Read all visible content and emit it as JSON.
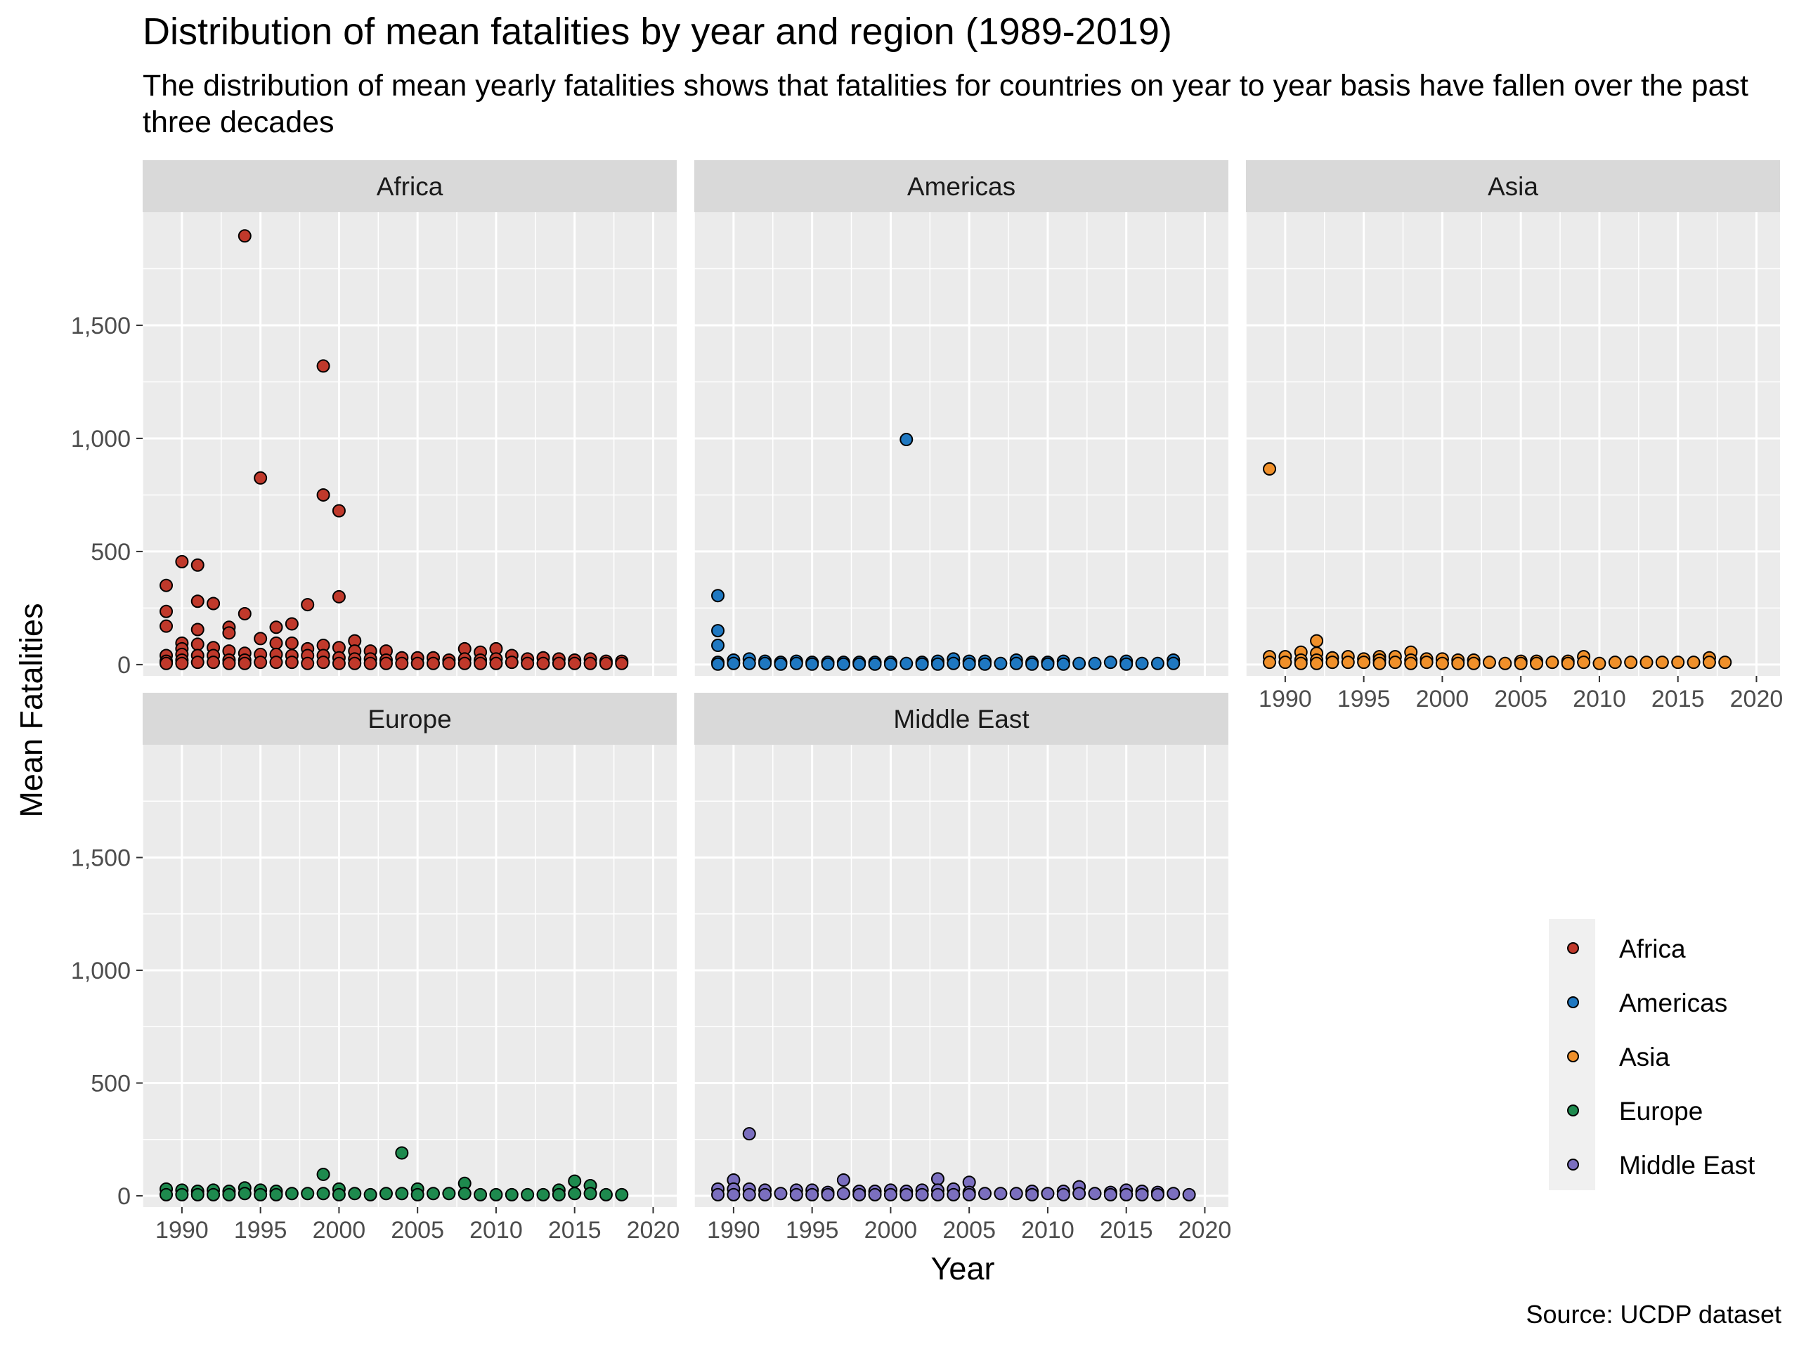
{
  "chart_data": {
    "type": "scatter",
    "title": "Distribution of mean fatalities by year and region (1989-2019)",
    "subtitle": "The distribution of mean yearly fatalities shows that fatalities for countries on  year to year basis have fallen over the past three decades",
    "caption": "Source: UCDP dataset",
    "xlabel": "Year",
    "ylabel": "Mean Fatalities",
    "xlim": [
      1987.5,
      2021.5
    ],
    "ylim": [
      -50,
      2000
    ],
    "xticks": [
      1990,
      1995,
      2000,
      2005,
      2010,
      2015,
      2020
    ],
    "yticks": [
      0,
      500,
      1000,
      1500
    ],
    "ytick_labels": [
      "0",
      "500",
      "1,000",
      "1,500"
    ],
    "grid": true,
    "legend_position": "right",
    "legend": [
      "Africa",
      "Americas",
      "Asia",
      "Europe",
      "Middle East"
    ],
    "colors": {
      "Africa": "#c0392b",
      "Americas": "#1f78c1",
      "Asia": "#f0902a",
      "Europe": "#1e8a4e",
      "Middle East": "#7b6fbf"
    },
    "series": [
      {
        "name": "Africa",
        "points": [
          [
            1989,
            350
          ],
          [
            1989,
            235
          ],
          [
            1989,
            170
          ],
          [
            1989,
            40
          ],
          [
            1989,
            15
          ],
          [
            1989,
            5
          ],
          [
            1990,
            455
          ],
          [
            1990,
            95
          ],
          [
            1990,
            70
          ],
          [
            1990,
            45
          ],
          [
            1990,
            20
          ],
          [
            1990,
            5
          ],
          [
            1991,
            440
          ],
          [
            1991,
            280
          ],
          [
            1991,
            155
          ],
          [
            1991,
            90
          ],
          [
            1991,
            40
          ],
          [
            1991,
            10
          ],
          [
            1992,
            270
          ],
          [
            1992,
            75
          ],
          [
            1992,
            40
          ],
          [
            1992,
            10
          ],
          [
            1993,
            165
          ],
          [
            1993,
            140
          ],
          [
            1993,
            60
          ],
          [
            1993,
            20
          ],
          [
            1993,
            5
          ],
          [
            1994,
            1895
          ],
          [
            1994,
            225
          ],
          [
            1994,
            50
          ],
          [
            1994,
            20
          ],
          [
            1994,
            5
          ],
          [
            1995,
            825
          ],
          [
            1995,
            115
          ],
          [
            1995,
            45
          ],
          [
            1995,
            10
          ],
          [
            1996,
            165
          ],
          [
            1996,
            95
          ],
          [
            1996,
            45
          ],
          [
            1996,
            10
          ],
          [
            1997,
            180
          ],
          [
            1997,
            95
          ],
          [
            1997,
            40
          ],
          [
            1997,
            10
          ],
          [
            1998,
            265
          ],
          [
            1998,
            70
          ],
          [
            1998,
            40
          ],
          [
            1998,
            5
          ],
          [
            1999,
            1320
          ],
          [
            1999,
            750
          ],
          [
            1999,
            85
          ],
          [
            1999,
            40
          ],
          [
            1999,
            10
          ],
          [
            2000,
            680
          ],
          [
            2000,
            300
          ],
          [
            2000,
            75
          ],
          [
            2000,
            30
          ],
          [
            2000,
            5
          ],
          [
            2001,
            105
          ],
          [
            2001,
            60
          ],
          [
            2001,
            25
          ],
          [
            2001,
            5
          ],
          [
            2002,
            60
          ],
          [
            2002,
            25
          ],
          [
            2002,
            5
          ],
          [
            2003,
            60
          ],
          [
            2003,
            20
          ],
          [
            2003,
            5
          ],
          [
            2004,
            30
          ],
          [
            2004,
            5
          ],
          [
            2005,
            30
          ],
          [
            2005,
            5
          ],
          [
            2006,
            30
          ],
          [
            2006,
            5
          ],
          [
            2007,
            20
          ],
          [
            2007,
            5
          ],
          [
            2008,
            70
          ],
          [
            2008,
            25
          ],
          [
            2008,
            5
          ],
          [
            2009,
            55
          ],
          [
            2009,
            20
          ],
          [
            2009,
            5
          ],
          [
            2010,
            70
          ],
          [
            2010,
            25
          ],
          [
            2010,
            5
          ],
          [
            2011,
            40
          ],
          [
            2011,
            10
          ],
          [
            2012,
            25
          ],
          [
            2012,
            5
          ],
          [
            2013,
            30
          ],
          [
            2013,
            5
          ],
          [
            2014,
            25
          ],
          [
            2014,
            5
          ],
          [
            2015,
            20
          ],
          [
            2015,
            5
          ],
          [
            2016,
            25
          ],
          [
            2016,
            5
          ],
          [
            2017,
            15
          ],
          [
            2017,
            5
          ],
          [
            2018,
            15
          ],
          [
            2018,
            5
          ]
        ]
      },
      {
        "name": "Americas",
        "points": [
          [
            1989,
            305
          ],
          [
            1989,
            150
          ],
          [
            1989,
            85
          ],
          [
            1989,
            10
          ],
          [
            1989,
            2
          ],
          [
            1990,
            20
          ],
          [
            1990,
            5
          ],
          [
            1991,
            25
          ],
          [
            1991,
            5
          ],
          [
            1992,
            15
          ],
          [
            1992,
            5
          ],
          [
            1993,
            10
          ],
          [
            1993,
            2
          ],
          [
            1994,
            15
          ],
          [
            1994,
            5
          ],
          [
            1995,
            10
          ],
          [
            1995,
            2
          ],
          [
            1996,
            10
          ],
          [
            1996,
            2
          ],
          [
            1997,
            10
          ],
          [
            1997,
            2
          ],
          [
            1998,
            10
          ],
          [
            1998,
            2
          ],
          [
            1999,
            10
          ],
          [
            1999,
            2
          ],
          [
            2000,
            10
          ],
          [
            2000,
            2
          ],
          [
            2001,
            995
          ],
          [
            2001,
            5
          ],
          [
            2002,
            10
          ],
          [
            2002,
            2
          ],
          [
            2003,
            15
          ],
          [
            2003,
            2
          ],
          [
            2004,
            25
          ],
          [
            2004,
            5
          ],
          [
            2005,
            15
          ],
          [
            2005,
            2
          ],
          [
            2006,
            15
          ],
          [
            2006,
            2
          ],
          [
            2007,
            5
          ],
          [
            2008,
            20
          ],
          [
            2008,
            5
          ],
          [
            2009,
            10
          ],
          [
            2009,
            2
          ],
          [
            2010,
            10
          ],
          [
            2010,
            2
          ],
          [
            2011,
            15
          ],
          [
            2011,
            2
          ],
          [
            2012,
            5
          ],
          [
            2013,
            5
          ],
          [
            2014,
            10
          ],
          [
            2015,
            15
          ],
          [
            2015,
            2
          ],
          [
            2016,
            5
          ],
          [
            2017,
            5
          ],
          [
            2018,
            20
          ],
          [
            2018,
            5
          ]
        ]
      },
      {
        "name": "Asia",
        "points": [
          [
            1989,
            865
          ],
          [
            1989,
            35
          ],
          [
            1989,
            10
          ],
          [
            1990,
            35
          ],
          [
            1990,
            10
          ],
          [
            1991,
            55
          ],
          [
            1991,
            20
          ],
          [
            1991,
            5
          ],
          [
            1992,
            105
          ],
          [
            1992,
            50
          ],
          [
            1992,
            20
          ],
          [
            1992,
            5
          ],
          [
            1993,
            30
          ],
          [
            1993,
            10
          ],
          [
            1994,
            35
          ],
          [
            1994,
            10
          ],
          [
            1995,
            25
          ],
          [
            1995,
            10
          ],
          [
            1996,
            35
          ],
          [
            1996,
            20
          ],
          [
            1996,
            5
          ],
          [
            1997,
            35
          ],
          [
            1997,
            10
          ],
          [
            1998,
            55
          ],
          [
            1998,
            20
          ],
          [
            1998,
            5
          ],
          [
            1999,
            25
          ],
          [
            1999,
            10
          ],
          [
            2000,
            25
          ],
          [
            2000,
            5
          ],
          [
            2001,
            20
          ],
          [
            2001,
            5
          ],
          [
            2002,
            20
          ],
          [
            2002,
            5
          ],
          [
            2003,
            10
          ],
          [
            2004,
            5
          ],
          [
            2005,
            15
          ],
          [
            2005,
            5
          ],
          [
            2006,
            15
          ],
          [
            2006,
            5
          ],
          [
            2007,
            10
          ],
          [
            2008,
            15
          ],
          [
            2008,
            5
          ],
          [
            2009,
            35
          ],
          [
            2009,
            10
          ],
          [
            2010,
            5
          ],
          [
            2011,
            10
          ],
          [
            2012,
            10
          ],
          [
            2013,
            10
          ],
          [
            2014,
            10
          ],
          [
            2015,
            10
          ],
          [
            2016,
            10
          ],
          [
            2017,
            30
          ],
          [
            2017,
            10
          ],
          [
            2018,
            10
          ]
        ]
      },
      {
        "name": "Europe",
        "points": [
          [
            1989,
            30
          ],
          [
            1989,
            5
          ],
          [
            1990,
            25
          ],
          [
            1990,
            5
          ],
          [
            1991,
            20
          ],
          [
            1991,
            5
          ],
          [
            1992,
            25
          ],
          [
            1992,
            5
          ],
          [
            1993,
            20
          ],
          [
            1993,
            5
          ],
          [
            1994,
            35
          ],
          [
            1994,
            10
          ],
          [
            1995,
            25
          ],
          [
            1995,
            5
          ],
          [
            1996,
            20
          ],
          [
            1996,
            5
          ],
          [
            1997,
            10
          ],
          [
            1998,
            10
          ],
          [
            1999,
            95
          ],
          [
            1999,
            10
          ],
          [
            2000,
            30
          ],
          [
            2000,
            5
          ],
          [
            2001,
            10
          ],
          [
            2002,
            5
          ],
          [
            2003,
            10
          ],
          [
            2004,
            190
          ],
          [
            2004,
            10
          ],
          [
            2005,
            30
          ],
          [
            2005,
            5
          ],
          [
            2006,
            10
          ],
          [
            2007,
            10
          ],
          [
            2008,
            55
          ],
          [
            2008,
            10
          ],
          [
            2009,
            5
          ],
          [
            2010,
            5
          ],
          [
            2011,
            5
          ],
          [
            2012,
            5
          ],
          [
            2013,
            5
          ],
          [
            2014,
            25
          ],
          [
            2014,
            5
          ],
          [
            2015,
            65
          ],
          [
            2015,
            10
          ],
          [
            2016,
            45
          ],
          [
            2016,
            10
          ],
          [
            2017,
            5
          ],
          [
            2018,
            5
          ]
        ]
      },
      {
        "name": "Middle East",
        "points": [
          [
            1989,
            30
          ],
          [
            1989,
            5
          ],
          [
            1990,
            70
          ],
          [
            1990,
            30
          ],
          [
            1990,
            5
          ],
          [
            1991,
            275
          ],
          [
            1991,
            30
          ],
          [
            1991,
            5
          ],
          [
            1992,
            25
          ],
          [
            1992,
            5
          ],
          [
            1993,
            10
          ],
          [
            1994,
            25
          ],
          [
            1994,
            5
          ],
          [
            1995,
            25
          ],
          [
            1995,
            5
          ],
          [
            1996,
            15
          ],
          [
            1996,
            5
          ],
          [
            1997,
            70
          ],
          [
            1997,
            10
          ],
          [
            1998,
            20
          ],
          [
            1998,
            5
          ],
          [
            1999,
            20
          ],
          [
            1999,
            5
          ],
          [
            2000,
            25
          ],
          [
            2000,
            5
          ],
          [
            2001,
            20
          ],
          [
            2001,
            5
          ],
          [
            2002,
            25
          ],
          [
            2002,
            5
          ],
          [
            2003,
            75
          ],
          [
            2003,
            25
          ],
          [
            2003,
            5
          ],
          [
            2004,
            30
          ],
          [
            2004,
            5
          ],
          [
            2005,
            60
          ],
          [
            2005,
            15
          ],
          [
            2005,
            5
          ],
          [
            2006,
            10
          ],
          [
            2007,
            10
          ],
          [
            2008,
            10
          ],
          [
            2009,
            20
          ],
          [
            2009,
            5
          ],
          [
            2010,
            10
          ],
          [
            2011,
            20
          ],
          [
            2011,
            5
          ],
          [
            2012,
            40
          ],
          [
            2012,
            10
          ],
          [
            2013,
            10
          ],
          [
            2014,
            15
          ],
          [
            2014,
            5
          ],
          [
            2015,
            25
          ],
          [
            2015,
            5
          ],
          [
            2016,
            20
          ],
          [
            2016,
            5
          ],
          [
            2017,
            15
          ],
          [
            2017,
            5
          ],
          [
            2018,
            10
          ],
          [
            2019,
            5
          ]
        ]
      }
    ]
  }
}
